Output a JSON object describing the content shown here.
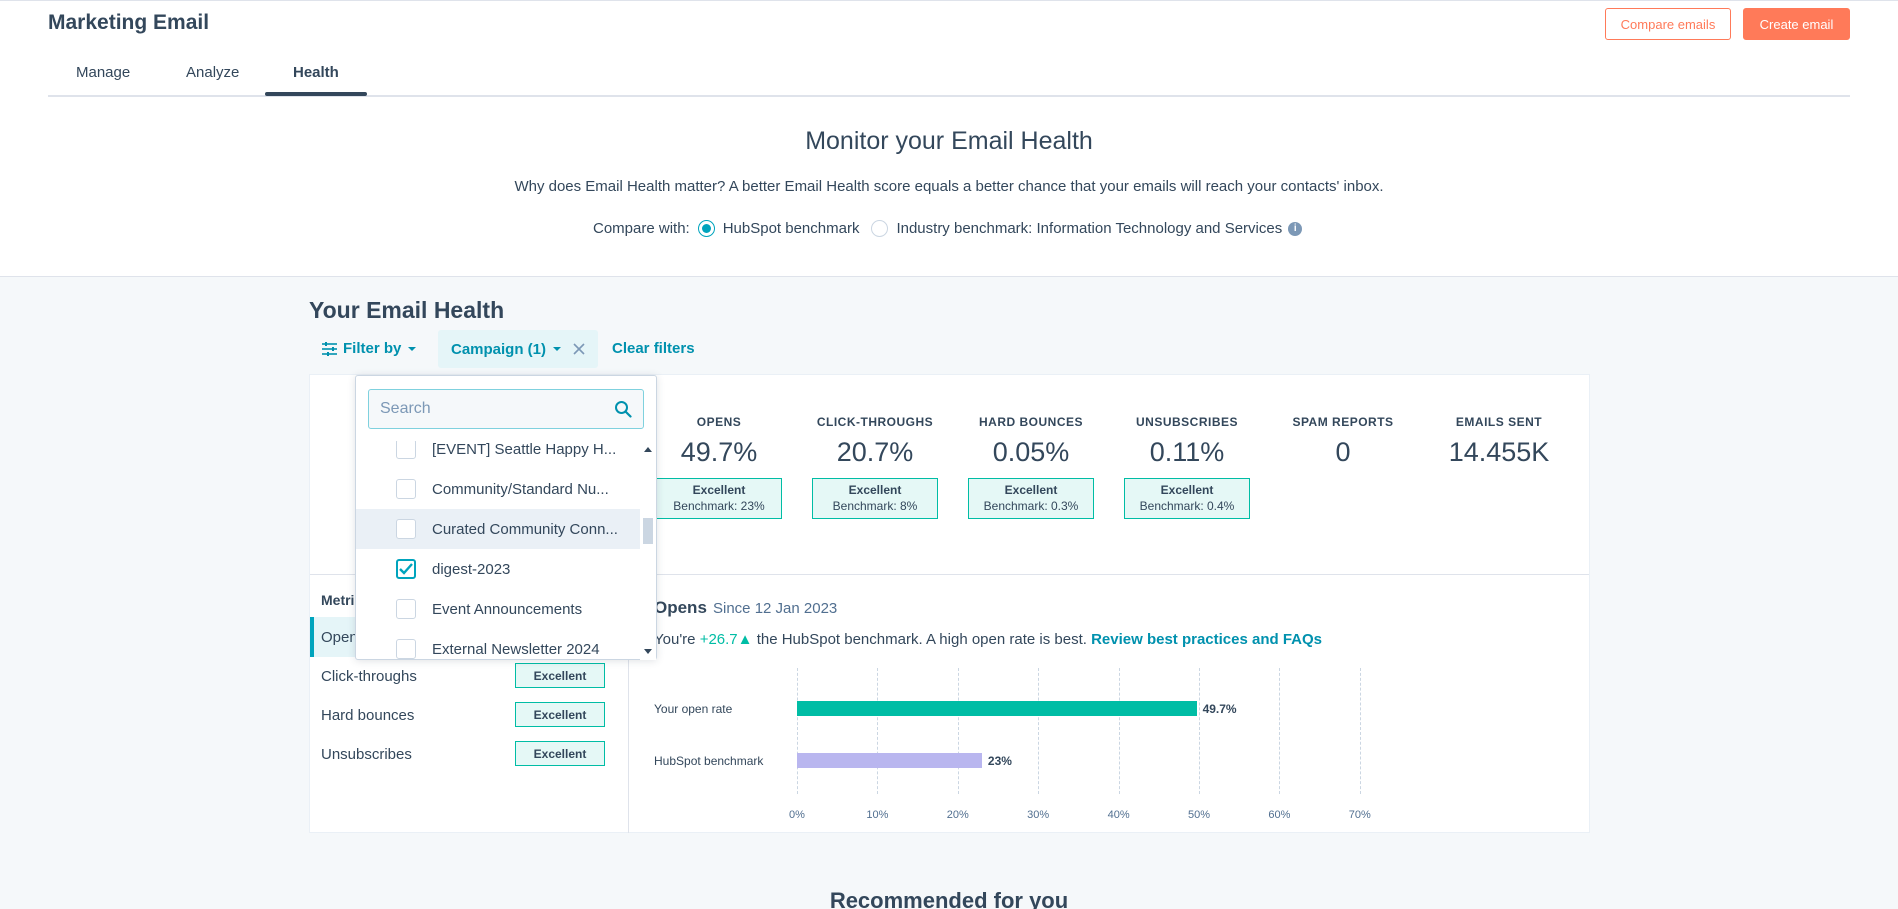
{
  "header": {
    "title": "Marketing Email",
    "compare_button": "Compare emails",
    "create_button": "Create email",
    "tabs": [
      {
        "label": "Manage"
      },
      {
        "label": "Analyze"
      },
      {
        "label": "Health"
      }
    ]
  },
  "monitor": {
    "title": "Monitor your Email Health",
    "subtitle": "Why does Email Health matter? A better Email Health score equals a better chance that your emails will reach your contacts' inbox.",
    "compare_label": "Compare with:",
    "option_hubspot": "HubSpot benchmark",
    "option_industry": "Industry benchmark: Information Technology and Services",
    "info_glyph": "i"
  },
  "health": {
    "title": "Your Email Health",
    "filter_by": "Filter by",
    "campaign_chip": "Campaign (1)",
    "clear_filters": "Clear filters"
  },
  "metrics": [
    {
      "label": "OPENS",
      "value": "49.7%",
      "rating": "Excellent",
      "benchmark": "Benchmark: 23%"
    },
    {
      "label": "CLICK-THROUGHS",
      "value": "20.7%",
      "rating": "Excellent",
      "benchmark": "Benchmark: 8%"
    },
    {
      "label": "HARD BOUNCES",
      "value": "0.05%",
      "rating": "Excellent",
      "benchmark": "Benchmark: 0.3%"
    },
    {
      "label": "UNSUBSCRIBES",
      "value": "0.11%",
      "rating": "Excellent",
      "benchmark": "Benchmark: 0.4%"
    },
    {
      "label": "SPAM REPORTS",
      "value": "0"
    },
    {
      "label": "EMAILS SENT",
      "value": "14.455K"
    }
  ],
  "metrics_list": {
    "header": "Metri",
    "rows": [
      {
        "label": "Open"
      },
      {
        "label": "Click-throughs",
        "rating": "Excellent"
      },
      {
        "label": "Hard bounces",
        "rating": "Excellent"
      },
      {
        "label": "Unsubscribes",
        "rating": "Excellent"
      }
    ]
  },
  "opens_detail": {
    "title": "Opens",
    "since": "Since 12 Jan 2023",
    "text_prefix": "You're",
    "delta": "+26.7",
    "text_mid": "the HubSpot benchmark. A high open rate is best.",
    "link": "Review best practices and FAQs"
  },
  "chart_data": {
    "type": "bar",
    "categories": [
      "Your open rate",
      "HubSpot benchmark"
    ],
    "values": [
      49.7,
      23
    ],
    "value_labels": [
      "49.7%",
      "23%"
    ],
    "colors": [
      "#00bda5",
      "#b9b6ef"
    ],
    "xlim": [
      0,
      70
    ],
    "ticks": [
      "0%",
      "10%",
      "20%",
      "30%",
      "40%",
      "50%",
      "60%",
      "70%"
    ],
    "grid": true
  },
  "dropdown": {
    "search_placeholder": "Search",
    "items": [
      {
        "label": "[EVENT] Seattle Happy H...",
        "checked": false
      },
      {
        "label": "Community/Standard Nu...",
        "checked": false
      },
      {
        "label": "Curated Community Conn...",
        "checked": false
      },
      {
        "label": "digest-2023",
        "checked": true
      },
      {
        "label": "Event Announcements",
        "checked": false
      },
      {
        "label": "External Newsletter 2024",
        "checked": false
      }
    ]
  },
  "recommended": {
    "title": "Recommended for you"
  },
  "colors": {
    "accent": "#ff7a59",
    "link": "#0091ae",
    "success": "#00bda5"
  }
}
